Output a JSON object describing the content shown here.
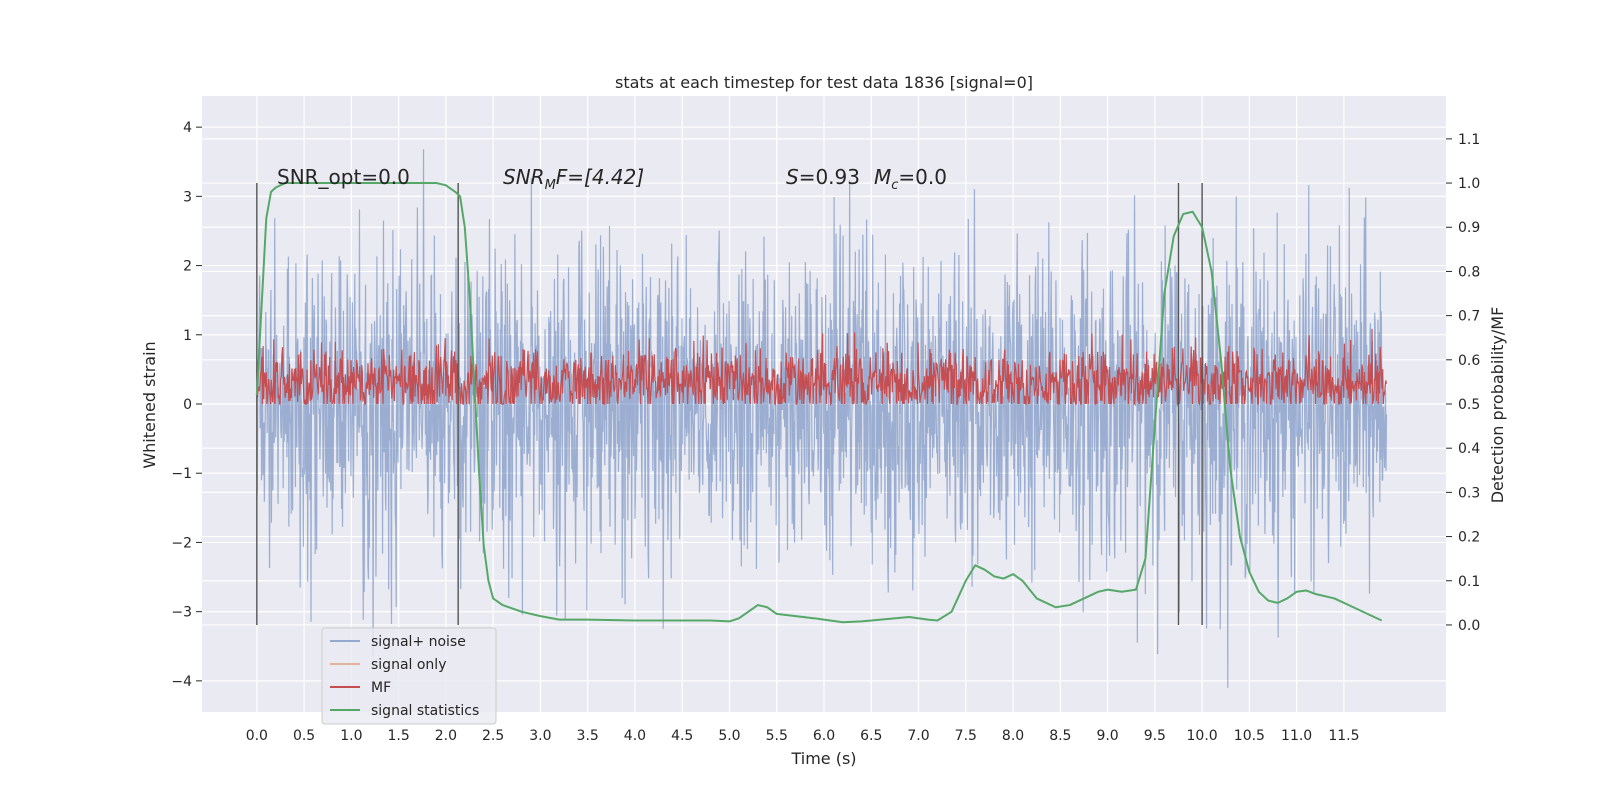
{
  "chart_data": {
    "type": "line",
    "title": "stats at each timestep for test data 1836 [signal=0]",
    "xlabel": "Time (s)",
    "ylabel": "Whitened strain",
    "ylabel_right": "Detection probability/MF",
    "xlim": [
      -0.58,
      12.58
    ],
    "ylim": [
      -4.45,
      4.45
    ],
    "ylim_right": [
      -0.197,
      1.197
    ],
    "x_ticks": [
      "0.0",
      "0.5",
      "1.0",
      "1.5",
      "2.0",
      "2.5",
      "3.0",
      "3.5",
      "4.0",
      "4.5",
      "5.0",
      "5.5",
      "6.0",
      "6.5",
      "7.0",
      "7.5",
      "8.0",
      "8.5",
      "9.0",
      "9.5",
      "10.0",
      "10.5",
      "11.0",
      "11.5"
    ],
    "y_ticks_left": [
      "−4",
      "−3",
      "−2",
      "−1",
      "0",
      "1",
      "2",
      "3",
      "4"
    ],
    "y_ticks_right": [
      "0.0",
      "0.1",
      "0.2",
      "0.3",
      "0.4",
      "0.5",
      "0.6",
      "0.7",
      "0.8",
      "0.9",
      "1.0",
      "1.1"
    ],
    "grid": true,
    "legend_placement": "lower-left",
    "annotations": {
      "snr_opt": "SNR_opt=0.0",
      "snr_mf_prefix": "SNR",
      "snr_mf_sub": "M",
      "snr_mf_suffix": "F=[4.42]",
      "s_label": "S",
      "s_value": "=0.93",
      "mc_label": "M",
      "mc_sub": "c",
      "mc_value": "=0.0"
    },
    "colors": {
      "signal_noise": "#4c72b0",
      "signal_only": "#dd8452",
      "mf": "#c44e52",
      "statistics": "#55a868",
      "background": "#eaeaf2",
      "vlines": "#555555"
    },
    "vertical_lines_x": [
      0.0,
      2.13,
      9.75,
      10.0
    ],
    "series": [
      {
        "name": "signal+ noise",
        "description_range": [
          -4.1,
          4.05
        ],
        "x": [
          0.0,
          11.95
        ]
      },
      {
        "name": "signal only",
        "values": []
      },
      {
        "name": "MF",
        "x": [
          0.0,
          11.95
        ]
      },
      {
        "name": "signal statistics",
        "axis": "right",
        "x": [
          0.0,
          0.05,
          0.1,
          0.15,
          0.2,
          0.3,
          0.5,
          1.0,
          1.5,
          1.9,
          2.0,
          2.1,
          2.15,
          2.2,
          2.25,
          2.3,
          2.35,
          2.4,
          2.45,
          2.5,
          2.6,
          2.8,
          3.0,
          3.2,
          3.5,
          4.0,
          4.5,
          4.8,
          5.0,
          5.1,
          5.2,
          5.3,
          5.4,
          5.5,
          5.7,
          5.9,
          6.0,
          6.2,
          6.4,
          6.6,
          6.9,
          7.1,
          7.2,
          7.35,
          7.5,
          7.6,
          7.7,
          7.8,
          7.9,
          8.0,
          8.1,
          8.25,
          8.45,
          8.6,
          8.75,
          8.9,
          9.0,
          9.15,
          9.3,
          9.4,
          9.5,
          9.6,
          9.7,
          9.8,
          9.9,
          10.0,
          10.1,
          10.2,
          10.3,
          10.4,
          10.5,
          10.6,
          10.7,
          10.8,
          10.9,
          11.0,
          11.1,
          11.2,
          11.4,
          11.6,
          11.8,
          11.9
        ],
        "values": [
          0.52,
          0.72,
          0.92,
          0.98,
          0.99,
          1.0,
          1.0,
          1.0,
          1.0,
          1.0,
          0.995,
          0.98,
          0.97,
          0.9,
          0.75,
          0.55,
          0.35,
          0.18,
          0.1,
          0.06,
          0.045,
          0.03,
          0.02,
          0.012,
          0.012,
          0.01,
          0.01,
          0.01,
          0.008,
          0.015,
          0.03,
          0.045,
          0.04,
          0.025,
          0.02,
          0.015,
          0.012,
          0.006,
          0.008,
          0.012,
          0.018,
          0.012,
          0.01,
          0.03,
          0.1,
          0.135,
          0.125,
          0.11,
          0.105,
          0.115,
          0.1,
          0.06,
          0.04,
          0.045,
          0.06,
          0.075,
          0.08,
          0.075,
          0.08,
          0.15,
          0.45,
          0.75,
          0.88,
          0.93,
          0.935,
          0.9,
          0.8,
          0.6,
          0.35,
          0.2,
          0.12,
          0.075,
          0.055,
          0.05,
          0.06,
          0.075,
          0.078,
          0.07,
          0.06,
          0.04,
          0.02,
          0.01
        ]
      }
    ]
  },
  "legend": {
    "items": [
      {
        "label": "signal+ noise"
      },
      {
        "label": "signal only"
      },
      {
        "label": "MF"
      },
      {
        "label": "signal statistics"
      }
    ]
  }
}
